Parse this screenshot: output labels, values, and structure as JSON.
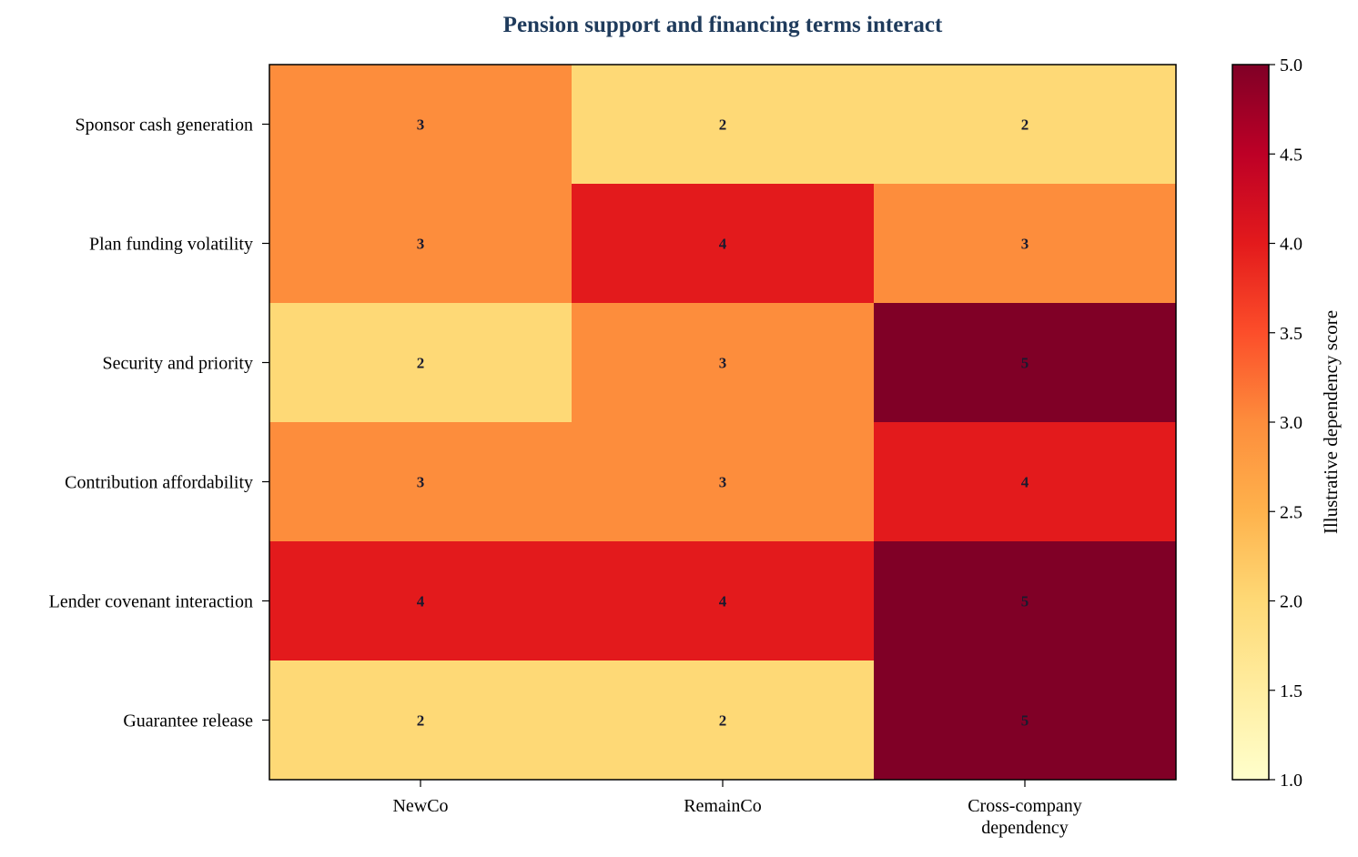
{
  "chart_data": {
    "type": "heatmap",
    "title": "Pension support and financing terms interact",
    "rows": [
      "Sponsor cash generation",
      "Plan funding volatility",
      "Security and priority",
      "Contribution affordability",
      "Lender covenant interaction",
      "Guarantee release"
    ],
    "columns": [
      [
        "NewCo"
      ],
      [
        "RemainCo"
      ],
      [
        "Cross-company",
        "dependency"
      ]
    ],
    "values": [
      [
        3,
        2,
        2
      ],
      [
        3,
        4,
        3
      ],
      [
        2,
        3,
        5
      ],
      [
        3,
        3,
        4
      ],
      [
        4,
        4,
        5
      ],
      [
        2,
        2,
        5
      ]
    ],
    "colorbar": {
      "label": "Illustrative dependency score",
      "range": [
        1.0,
        5.0
      ],
      "ticks": [
        "1.0",
        "1.5",
        "2.0",
        "2.5",
        "3.0",
        "3.5",
        "4.0",
        "4.5",
        "5.0"
      ],
      "colormap": "YlOrRd"
    },
    "colors": {
      "2": "#fed976",
      "3": "#fd8d3c",
      "4": "#e31a1c",
      "5": "#800026"
    }
  }
}
